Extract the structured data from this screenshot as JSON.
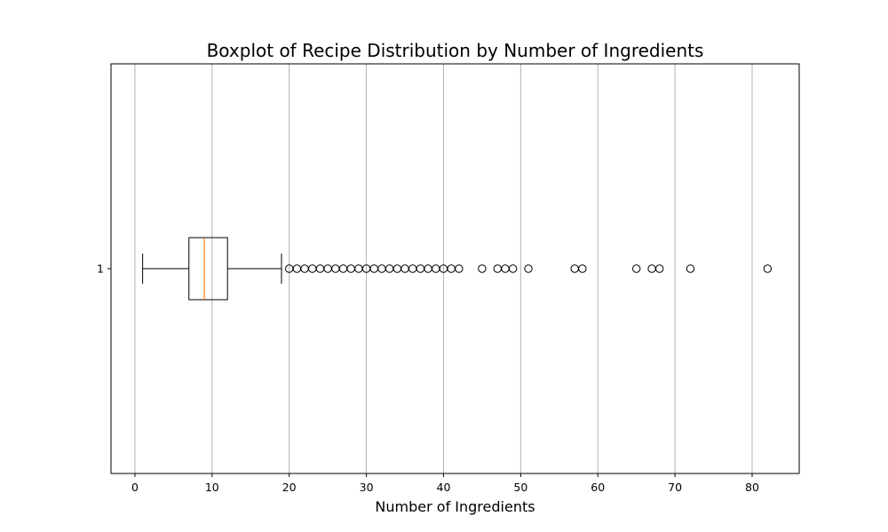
{
  "chart_data": {
    "type": "boxplot",
    "orientation": "horizontal",
    "title": "Boxplot of Recipe Distribution by Number of Ingredients",
    "xlabel": "Number of Ingredients",
    "ylabel": "",
    "xlim": [
      -3.1,
      86.1
    ],
    "xticks": [
      0,
      10,
      20,
      30,
      40,
      50,
      60,
      70,
      80
    ],
    "yticks": [
      "1"
    ],
    "grid": "x",
    "colors": {
      "box": "#000000",
      "median": "#ff7f0e",
      "whisker": "#000000",
      "outlier": "#000000",
      "grid": "#b0b0b0"
    },
    "series": [
      {
        "category": "1",
        "whisker_low": 1,
        "q1": 7,
        "median": 9,
        "q3": 12,
        "whisker_high": 19,
        "outliers": [
          20,
          21,
          22,
          23,
          24,
          25,
          26,
          27,
          28,
          29,
          30,
          31,
          32,
          33,
          34,
          35,
          36,
          37,
          38,
          39,
          40,
          41,
          42,
          45,
          47,
          48,
          49,
          51,
          57,
          58,
          65,
          67,
          68,
          72,
          82
        ]
      }
    ]
  }
}
